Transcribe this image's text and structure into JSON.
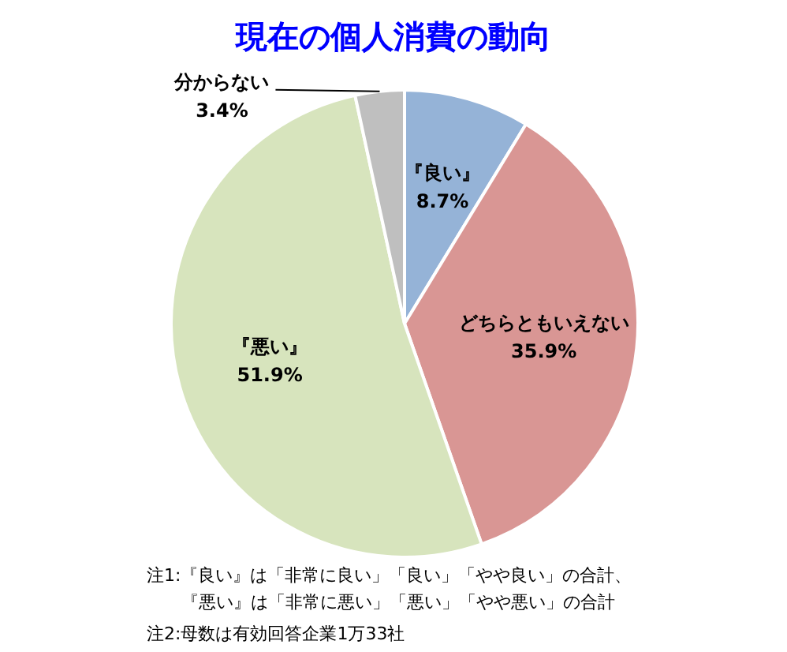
{
  "chart_data": {
    "type": "pie",
    "title": "現在の個人消費の動向",
    "categories": [
      "『良い』",
      "どちらともいえない",
      "『悪い』",
      "分からない"
    ],
    "values": [
      8.7,
      35.9,
      51.9,
      3.4
    ],
    "value_labels": [
      "8.7%",
      "35.9%",
      "51.9%",
      "3.4%"
    ],
    "colors": [
      "#95b3d7",
      "#d99694",
      "#d7e4bd",
      "#bfbfbf"
    ],
    "legend": false,
    "annotations": [
      "注1:『良い』は「非常に良い」「良い」「やや良い」の合計、",
      "　　『悪い』は「非常に悪い」「悪い」「やや悪い」の合計",
      "注2:母数は有効回答企業1万33社"
    ]
  }
}
